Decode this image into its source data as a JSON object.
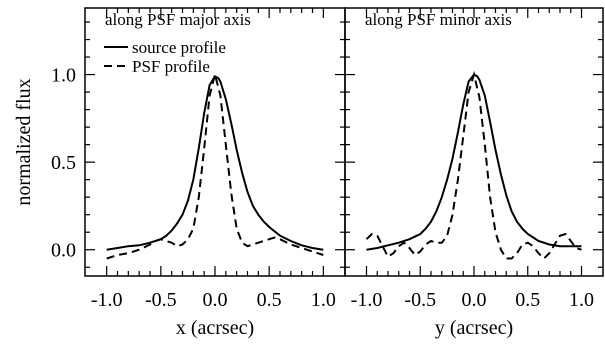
{
  "chart_data": [
    {
      "type": "line",
      "panel_label": "along PSF major axis",
      "xlabel": "x (acrsec)",
      "ylabel": "normalized flux",
      "xlim": [
        -1.2,
        1.2
      ],
      "ylim": [
        -0.15,
        1.38
      ],
      "xticks": [
        "-1.0",
        "-0.5",
        "0.0",
        "0.5",
        "1.0"
      ],
      "yticks": [
        "0.0",
        "0.5",
        "1.0"
      ],
      "legend": {
        "position": "top-left",
        "entries": [
          "source profile",
          "PSF profile"
        ]
      },
      "series": [
        {
          "name": "source profile",
          "style": "solid",
          "x": [
            -1.0,
            -0.9,
            -0.8,
            -0.7,
            -0.6,
            -0.5,
            -0.45,
            -0.4,
            -0.35,
            -0.3,
            -0.25,
            -0.2,
            -0.15,
            -0.1,
            -0.05,
            0.0,
            0.03,
            0.05,
            0.1,
            0.15,
            0.2,
            0.25,
            0.3,
            0.35,
            0.4,
            0.45,
            0.5,
            0.6,
            0.7,
            0.8,
            0.9,
            1.0
          ],
          "values": [
            0.0,
            0.01,
            0.02,
            0.025,
            0.04,
            0.06,
            0.08,
            0.11,
            0.15,
            0.2,
            0.28,
            0.4,
            0.58,
            0.78,
            0.94,
            0.99,
            0.98,
            0.96,
            0.86,
            0.72,
            0.57,
            0.44,
            0.33,
            0.25,
            0.2,
            0.16,
            0.13,
            0.08,
            0.05,
            0.025,
            0.01,
            0.0
          ]
        },
        {
          "name": "PSF profile",
          "style": "dashed",
          "x": [
            -1.0,
            -0.9,
            -0.8,
            -0.7,
            -0.6,
            -0.55,
            -0.5,
            -0.45,
            -0.4,
            -0.35,
            -0.3,
            -0.25,
            -0.2,
            -0.15,
            -0.1,
            -0.05,
            0.0,
            0.05,
            0.1,
            0.15,
            0.2,
            0.25,
            0.3,
            0.35,
            0.4,
            0.5,
            0.55,
            0.6,
            0.7,
            0.8,
            0.9,
            1.0
          ],
          "values": [
            -0.05,
            -0.03,
            -0.02,
            0.0,
            0.03,
            0.05,
            0.06,
            0.05,
            0.04,
            0.02,
            0.03,
            0.06,
            0.12,
            0.3,
            0.58,
            0.88,
            1.0,
            0.88,
            0.6,
            0.32,
            0.12,
            0.04,
            0.02,
            0.03,
            0.04,
            0.06,
            0.07,
            0.06,
            0.03,
            0.01,
            -0.01,
            -0.03
          ]
        }
      ]
    },
    {
      "type": "line",
      "panel_label": "along PSF minor axis",
      "xlabel": "y (acrsec)",
      "xlim": [
        -1.2,
        1.2
      ],
      "ylim": [
        -0.15,
        1.38
      ],
      "xticks": [
        "-1.0",
        "-0.5",
        "0.0",
        "0.5",
        "1.0"
      ],
      "series": [
        {
          "name": "source profile",
          "style": "solid",
          "x": [
            -1.0,
            -0.9,
            -0.8,
            -0.7,
            -0.6,
            -0.5,
            -0.45,
            -0.4,
            -0.35,
            -0.3,
            -0.25,
            -0.2,
            -0.15,
            -0.1,
            -0.05,
            0.0,
            0.03,
            0.05,
            0.1,
            0.15,
            0.2,
            0.25,
            0.3,
            0.35,
            0.4,
            0.45,
            0.5,
            0.6,
            0.7,
            0.8,
            0.9,
            1.0
          ],
          "values": [
            0.0,
            0.01,
            0.025,
            0.04,
            0.06,
            0.09,
            0.12,
            0.16,
            0.22,
            0.3,
            0.4,
            0.52,
            0.67,
            0.83,
            0.96,
            1.0,
            0.99,
            0.97,
            0.88,
            0.73,
            0.57,
            0.43,
            0.31,
            0.22,
            0.16,
            0.12,
            0.09,
            0.05,
            0.03,
            0.02,
            0.02,
            0.02
          ]
        },
        {
          "name": "PSF profile",
          "style": "dashed",
          "x": [
            -1.0,
            -0.95,
            -0.9,
            -0.85,
            -0.8,
            -0.75,
            -0.7,
            -0.65,
            -0.6,
            -0.55,
            -0.5,
            -0.45,
            -0.4,
            -0.35,
            -0.3,
            -0.25,
            -0.2,
            -0.15,
            -0.1,
            -0.05,
            0.0,
            0.05,
            0.1,
            0.15,
            0.2,
            0.25,
            0.3,
            0.35,
            0.4,
            0.45,
            0.5,
            0.55,
            0.6,
            0.65,
            0.7,
            0.75,
            0.8,
            0.85,
            0.9,
            0.95,
            1.0
          ],
          "values": [
            0.06,
            0.09,
            0.08,
            0.02,
            -0.04,
            -0.02,
            0.02,
            0.04,
            0.01,
            -0.03,
            -0.01,
            0.03,
            0.05,
            0.04,
            0.04,
            0.08,
            0.2,
            0.4,
            0.65,
            0.9,
            1.0,
            0.87,
            0.6,
            0.3,
            0.1,
            0.0,
            -0.05,
            -0.05,
            -0.02,
            0.03,
            0.04,
            0.02,
            -0.02,
            -0.05,
            -0.02,
            0.03,
            0.08,
            0.09,
            0.05,
            0.01,
            0.0
          ]
        }
      ]
    }
  ]
}
